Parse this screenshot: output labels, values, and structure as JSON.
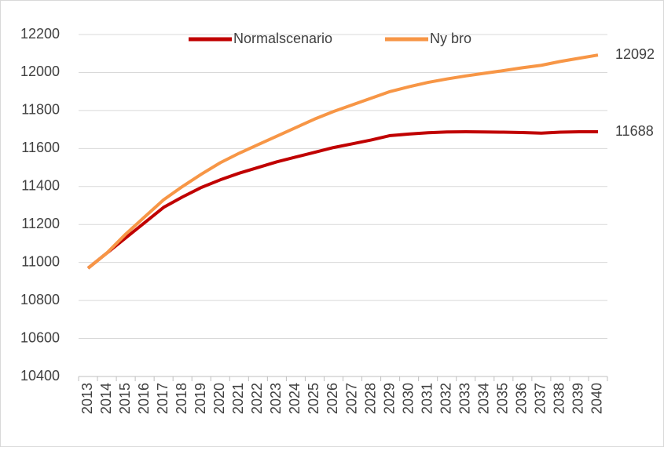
{
  "chart_data": {
    "type": "line",
    "categories": [
      "2013",
      "2014",
      "2015",
      "2016",
      "2017",
      "2018",
      "2019",
      "2020",
      "2021",
      "2022",
      "2023",
      "2024",
      "2025",
      "2026",
      "2027",
      "2028",
      "2029",
      "2030",
      "2031",
      "2032",
      "2033",
      "2034",
      "2035",
      "2036",
      "2037",
      "2038",
      "2039",
      "2040"
    ],
    "series": [
      {
        "name": "Normalscenario",
        "color": "#c00000",
        "values": [
          10970,
          11050,
          11130,
          11210,
          11290,
          11345,
          11395,
          11435,
          11470,
          11500,
          11530,
          11555,
          11580,
          11605,
          11625,
          11645,
          11668,
          11676,
          11683,
          11687,
          11688,
          11687,
          11686,
          11684,
          11681,
          11686,
          11688,
          11688
        ],
        "end_label": "11688"
      },
      {
        "name": "Ny bro",
        "color": "#f79646",
        "values": [
          10970,
          11050,
          11150,
          11240,
          11330,
          11400,
          11465,
          11525,
          11575,
          11620,
          11665,
          11710,
          11755,
          11795,
          11830,
          11865,
          11900,
          11925,
          11948,
          11966,
          11982,
          11996,
          12010,
          12025,
          12038,
          12058,
          12075,
          12092
        ],
        "end_label": "12092"
      }
    ],
    "ylim": [
      10400,
      12200
    ],
    "yticks": [
      10400,
      10600,
      10800,
      11000,
      11200,
      11400,
      11600,
      11800,
      12000,
      12200
    ],
    "grid": true,
    "legend": "top"
  }
}
